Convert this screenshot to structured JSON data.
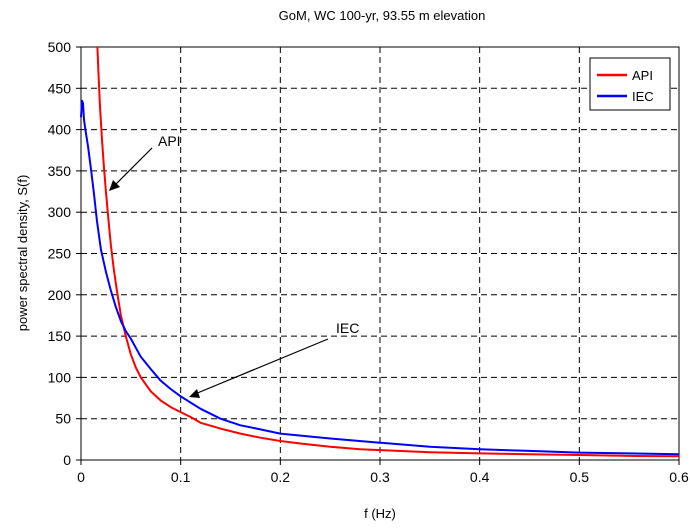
{
  "chart_data": {
    "type": "line",
    "title": "GoM, WC 100-yr, 93.55 m elevation",
    "xlabel": "f (Hz)",
    "ylabel": "power spectral density, S(f)",
    "xlim": [
      0,
      0.6
    ],
    "ylim": [
      0,
      500
    ],
    "xticks": [
      0,
      0.1,
      0.2,
      0.3,
      0.4,
      0.5,
      0.6
    ],
    "xtick_labels": [
      "0",
      "0.1",
      "0.2",
      "0.3",
      "0.4",
      "0.5",
      "0.6"
    ],
    "yticks": [
      0,
      50,
      100,
      150,
      200,
      250,
      300,
      350,
      400,
      450,
      500
    ],
    "ytick_labels": [
      "0",
      "50",
      "100",
      "150",
      "200",
      "250",
      "300",
      "350",
      "400",
      "450",
      "500"
    ],
    "grid": true,
    "legend": "top-right",
    "series": [
      {
        "name": "API",
        "color": "#ff0000",
        "x": [
          0.0165,
          0.0175,
          0.019,
          0.021,
          0.023,
          0.025,
          0.028,
          0.03,
          0.033,
          0.036,
          0.04,
          0.045,
          0.05,
          0.055,
          0.06,
          0.07,
          0.08,
          0.09,
          0.1,
          0.11,
          0.12,
          0.14,
          0.16,
          0.18,
          0.2,
          0.22,
          0.25,
          0.28,
          0.3,
          0.35,
          0.4,
          0.45,
          0.5,
          0.55,
          0.6
        ],
        "y": [
          500,
          470,
          430,
          390,
          355,
          325,
          285,
          260,
          230,
          205,
          175,
          150,
          128,
          112,
          100,
          83,
          72,
          64,
          58,
          52,
          45,
          38,
          32,
          27,
          23,
          20,
          16,
          13,
          12,
          9.5,
          8,
          7,
          6,
          5,
          4.5
        ]
      },
      {
        "name": "IEC",
        "color": "#0000ff",
        "x": [
          0,
          0.001,
          0.002,
          0.003,
          0.005,
          0.007,
          0.01,
          0.013,
          0.016,
          0.02,
          0.025,
          0.03,
          0.035,
          0.04,
          0.045,
          0.05,
          0.06,
          0.07,
          0.08,
          0.09,
          0.1,
          0.12,
          0.14,
          0.16,
          0.18,
          0.2,
          0.25,
          0.3,
          0.35,
          0.4,
          0.45,
          0.5,
          0.55,
          0.6
        ],
        "y": [
          415,
          435,
          432,
          412,
          395,
          380,
          352,
          322,
          290,
          255,
          228,
          205,
          185,
          168,
          156,
          147,
          125,
          110,
          96,
          86,
          77,
          62,
          50,
          42,
          37,
          32,
          26,
          21,
          16,
          13,
          11,
          9,
          8,
          7
        ]
      }
    ],
    "annotations": [
      {
        "text": "API",
        "point": [
          0.027,
          325
        ]
      },
      {
        "text": "IEC",
        "point": [
          0.107,
          75
        ]
      }
    ]
  }
}
